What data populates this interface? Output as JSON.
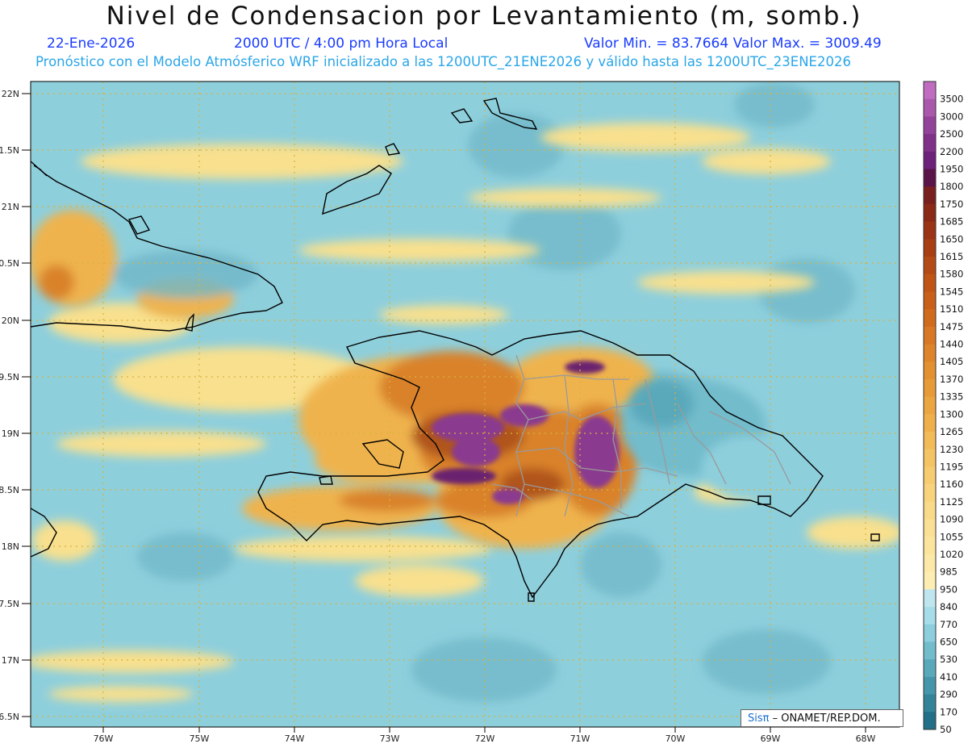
{
  "header": {
    "title": "Nivel de Condensacion por Levantamiento (m, somb.)",
    "date": "22-Ene-2026",
    "time": "2000 UTC / 4:00 pm Hora Local",
    "minmax": "Valor Min. = 83.7664   Valor Max. = 3009.49",
    "forecast": "Pronóstico con el Modelo Atmósferico WRF inicializado a las 1200UTC_21ENE2026 y válido hasta las  1200UTC_23ENE2026"
  },
  "axes": {
    "lat_labels": [
      "22N",
      "1.5N",
      "21N",
      "0.5N",
      "20N",
      "9.5N",
      "19N",
      "8.5N",
      "18N",
      "7.5N",
      "17N",
      "6.5N"
    ],
    "lon_labels": [
      "76W",
      "75W",
      "74W",
      "73W",
      "72W",
      "71W",
      "70W",
      "69W",
      "68W"
    ]
  },
  "colorbar": {
    "labels": [
      "3500",
      "3000",
      "2500",
      "2200",
      "1950",
      "1800",
      "1750",
      "1685",
      "1650",
      "1615",
      "1580",
      "1545",
      "1510",
      "1475",
      "1440",
      "1405",
      "1370",
      "1335",
      "1300",
      "1265",
      "1230",
      "1195",
      "1160",
      "1125",
      "1090",
      "1055",
      "1020",
      "985",
      "950",
      "840",
      "770",
      "650",
      "530",
      "410",
      "290",
      "170",
      "50"
    ],
    "colors": [
      "#c06cc0",
      "#a958ab",
      "#94439a",
      "#81318a",
      "#6d217a",
      "#5a1448",
      "#7a1f1f",
      "#8a2a16",
      "#9a3415",
      "#a83e14",
      "#b44a15",
      "#c05517",
      "#c8601a",
      "#d06b1e",
      "#d87824",
      "#de842a",
      "#e39030",
      "#e79b38",
      "#eba642",
      "#efb04c",
      "#f2bb58",
      "#f4c464",
      "#f6cc70",
      "#f8d37c",
      "#f9da88",
      "#fae094",
      "#fbe59e",
      "#fce9a8",
      "#fdedb2",
      "#bfe6ee",
      "#a7dde8",
      "#8ccedc",
      "#72bccc",
      "#5aa9bb",
      "#4596aa",
      "#338399",
      "#226f87"
    ]
  },
  "map": {
    "colors": {
      "ocean": "#8ecfdc",
      "ocean_dark": "#6fb7c8",
      "yellow": "#f8e08e",
      "light_orange": "#efb34e",
      "orange": "#d9822b",
      "brown": "#b0541a",
      "purple": "#8a3b8f",
      "dark_purple": "#6a2070",
      "coast": "#000000",
      "borders": "#999999"
    }
  },
  "footer": {
    "credit_sis": "Sisπ",
    "credit_text": " – ONAMET/REP.DOM."
  }
}
